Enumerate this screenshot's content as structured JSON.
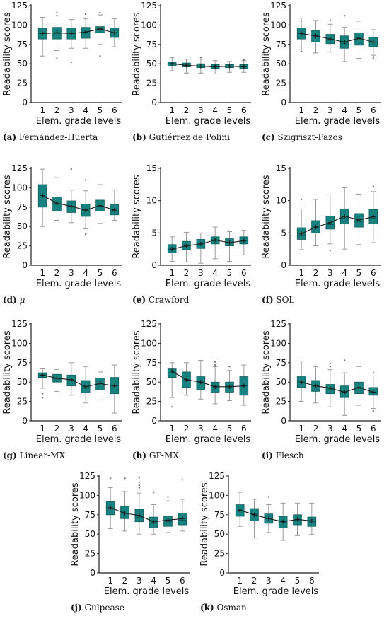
{
  "colors": {
    "box_fill": "#17827f",
    "box_edge": "#0e5e5b",
    "whisker": "#9a9a9a",
    "mean_line": "#1a1a1a",
    "outlier": "#777777"
  },
  "chart_data": [
    {
      "type": "box",
      "panel_letter": "(a)",
      "caption": "Fernández-Huerta",
      "xlabel": "Elem. grade levels",
      "ylabel": "Readability scores",
      "ylim": [
        0,
        125
      ],
      "yticks": [
        0,
        25,
        50,
        75,
        100,
        125
      ],
      "categories": [
        "1",
        "2",
        "3",
        "4",
        "5",
        "6"
      ],
      "q1": [
        82,
        82,
        82,
        83,
        90,
        84
      ],
      "median": [
        89,
        89,
        89,
        90,
        94,
        90
      ],
      "q3": [
        96,
        97,
        96,
        97,
        98,
        96
      ],
      "whisker_low": [
        60,
        67,
        70,
        70,
        75,
        72
      ],
      "whisker_high": [
        110,
        109,
        107,
        108,
        113,
        108
      ],
      "mean": [
        89,
        90,
        89,
        91,
        95,
        90
      ],
      "outliers": [
        [],
        [
          57,
          116,
          112
        ],
        [
          52
        ],
        [
          114
        ],
        [
          60,
          116
        ],
        []
      ]
    },
    {
      "type": "box",
      "panel_letter": "(b)",
      "caption": "Gutiérrez de Polini",
      "xlabel": "Elem. grade levels",
      "ylabel": "Readability scores",
      "ylim": [
        0,
        125
      ],
      "yticks": [
        0,
        25,
        50,
        75,
        100,
        125
      ],
      "categories": [
        "1",
        "2",
        "3",
        "4",
        "5",
        "6"
      ],
      "q1": [
        47,
        46,
        45,
        44,
        45,
        44
      ],
      "median": [
        50,
        48,
        47,
        46,
        47,
        46
      ],
      "q3": [
        52,
        51,
        50,
        49,
        49,
        49
      ],
      "whisker_low": [
        41,
        38,
        38,
        37,
        39,
        39
      ],
      "whisker_high": [
        58,
        56,
        56,
        54,
        53,
        54
      ],
      "mean": [
        50,
        48,
        47,
        46,
        47,
        46
      ],
      "outliers": [
        [],
        [],
        [
          58
        ],
        [],
        [],
        [
          55
        ]
      ]
    },
    {
      "type": "box",
      "panel_letter": "(c)",
      "caption": "Szigriszt-Pazos",
      "xlabel": "Elem. grade levels",
      "ylabel": "Readability scores",
      "ylim": [
        0,
        125
      ],
      "yticks": [
        0,
        25,
        50,
        75,
        100,
        125
      ],
      "categories": [
        "1",
        "2",
        "3",
        "4",
        "5",
        "6"
      ],
      "q1": [
        82,
        78,
        76,
        70,
        74,
        72
      ],
      "median": [
        89,
        86,
        82,
        76,
        82,
        78
      ],
      "q3": [
        96,
        93,
        88,
        86,
        90,
        84
      ],
      "whisker_low": [
        68,
        64,
        65,
        53,
        57,
        61
      ],
      "whisker_high": [
        109,
        106,
        101,
        97,
        105,
        94
      ],
      "mean": [
        89,
        86,
        82,
        78,
        83,
        78
      ],
      "outliers": [
        [
          66
        ],
        [],
        [
          106
        ],
        [
          112
        ],
        [],
        [
          57,
          59
        ]
      ]
    },
    {
      "type": "box",
      "panel_letter": "(d)",
      "caption": "μ",
      "xlabel": "Elem. grade levels",
      "ylabel": "Readability scores",
      "ylim": [
        0,
        125
      ],
      "yticks": [
        0,
        25,
        50,
        75,
        100,
        125
      ],
      "categories": [
        "1",
        "2",
        "3",
        "4",
        "5",
        "6"
      ],
      "q1": [
        75,
        70,
        68,
        63,
        70,
        65
      ],
      "median": [
        88,
        79,
        76,
        70,
        76,
        70
      ],
      "q3": [
        104,
        88,
        83,
        79,
        84,
        78
      ],
      "whisker_low": [
        50,
        58,
        55,
        47,
        54,
        58
      ],
      "whisker_high": [
        124,
        113,
        97,
        96,
        104,
        97
      ],
      "mean": [
        90,
        80,
        76,
        71,
        77,
        71
      ],
      "outliers": [
        [],
        [],
        [
          124
        ],
        [
          40,
          110
        ],
        [],
        []
      ]
    },
    {
      "type": "box",
      "panel_letter": "(e)",
      "caption": "Crawford",
      "xlabel": "Elem. grade levels",
      "ylabel": "Readability scores",
      "ylim": [
        0,
        15
      ],
      "yticks": [
        0,
        5,
        10,
        15
      ],
      "categories": [
        "1",
        "2",
        "3",
        "4",
        "5",
        "6"
      ],
      "q1": [
        1.9,
        2.4,
        2.6,
        3.3,
        3.0,
        3.3
      ],
      "median": [
        2.5,
        3.0,
        3.3,
        3.9,
        3.5,
        3.8
      ],
      "q3": [
        3.2,
        3.7,
        4.0,
        4.4,
        4.1,
        4.4
      ],
      "whisker_low": [
        0.6,
        0.5,
        0.3,
        1.0,
        0.6,
        1.6
      ],
      "whisker_high": [
        4.4,
        5.1,
        5.0,
        5.9,
        5.2,
        5.4
      ],
      "mean": [
        2.5,
        3.0,
        3.3,
        3.9,
        3.5,
        3.8
      ],
      "outliers": [
        [],
        [],
        [],
        [],
        [],
        []
      ]
    },
    {
      "type": "box",
      "panel_letter": "(f)",
      "caption": "SOL",
      "xlabel": "Elem. grade levels",
      "ylabel": "Readability scores",
      "ylim": [
        0,
        15
      ],
      "yticks": [
        0,
        5,
        10,
        15
      ],
      "categories": [
        "1",
        "2",
        "3",
        "4",
        "5",
        "6"
      ],
      "q1": [
        4.0,
        5.0,
        5.6,
        6.4,
        5.9,
        6.4
      ],
      "median": [
        4.7,
        5.8,
        6.3,
        7.3,
        6.7,
        7.3
      ],
      "q3": [
        5.8,
        6.9,
        7.6,
        8.7,
        8.0,
        8.6
      ],
      "whisker_low": [
        2.4,
        3.0,
        3.3,
        2.5,
        3.2,
        3.5
      ],
      "whisker_high": [
        8.7,
        10.2,
        10.9,
        12.0,
        11.0,
        11.4
      ],
      "mean": [
        4.9,
        5.9,
        6.6,
        7.6,
        7.0,
        7.5
      ],
      "outliers": [
        [
          10.2
        ],
        [],
        [
          2.3
        ],
        [],
        [],
        [
          12.2
        ]
      ]
    },
    {
      "type": "box",
      "panel_letter": "(g)",
      "caption": "Linear-MX",
      "xlabel": "Elem. grade levels",
      "ylabel": "Readability scores",
      "ylim": [
        0,
        125
      ],
      "yticks": [
        0,
        25,
        50,
        75,
        100,
        125
      ],
      "categories": [
        "1",
        "2",
        "3",
        "4",
        "5",
        "6"
      ],
      "q1": [
        56,
        50,
        45,
        36,
        40,
        35
      ],
      "median": [
        59,
        54,
        53,
        42,
        48,
        45
      ],
      "q3": [
        62,
        60,
        59,
        52,
        55,
        56
      ],
      "whisker_low": [
        42,
        38,
        33,
        23,
        27,
        10
      ],
      "whisker_high": [
        67,
        66,
        75,
        70,
        63,
        72
      ],
      "mean": [
        59,
        55,
        53,
        44,
        48,
        45
      ],
      "outliers": [
        [
          30,
          35
        ],
        [],
        [],
        [],
        [],
        []
      ]
    },
    {
      "type": "box",
      "panel_letter": "(h)",
      "caption": "GP-MX",
      "xlabel": "Elem. grade levels",
      "ylabel": "Readability scores",
      "ylim": [
        0,
        125
      ],
      "yticks": [
        0,
        25,
        50,
        75,
        100,
        125
      ],
      "categories": [
        "1",
        "2",
        "3",
        "4",
        "5",
        "6"
      ],
      "q1": [
        56,
        43,
        40,
        37,
        37,
        33
      ],
      "median": [
        62,
        52,
        50,
        45,
        45,
        45
      ],
      "q3": [
        67,
        63,
        57,
        50,
        50,
        57
      ],
      "whisker_low": [
        30,
        33,
        28,
        22,
        26,
        20
      ],
      "whisker_high": [
        75,
        75,
        78,
        70,
        65,
        72
      ],
      "mean": [
        64,
        53,
        50,
        44,
        44,
        45
      ],
      "outliers": [
        [
          18
        ],
        [],
        [],
        [
          72,
          76
        ],
        [
          70
        ],
        []
      ]
    },
    {
      "type": "box",
      "panel_letter": "(i)",
      "caption": "Flesch",
      "xlabel": "Elem. grade levels",
      "ylabel": "Readability scores",
      "ylim": [
        0,
        125
      ],
      "yticks": [
        0,
        25,
        50,
        75,
        100,
        125
      ],
      "categories": [
        "1",
        "2",
        "3",
        "4",
        "5",
        "6"
      ],
      "q1": [
        43,
        38,
        35,
        30,
        35,
        33
      ],
      "median": [
        50,
        45,
        40,
        36,
        42,
        37
      ],
      "q3": [
        57,
        52,
        47,
        45,
        50,
        43
      ],
      "whisker_low": [
        25,
        23,
        18,
        7,
        20,
        16
      ],
      "whisker_high": [
        77,
        70,
        66,
        62,
        70,
        58
      ],
      "mean": [
        50,
        45,
        42,
        37,
        43,
        37
      ],
      "outliers": [
        [],
        [],
        [
          70,
          74
        ],
        [
          78
        ],
        [],
        [
          13,
          62
        ]
      ]
    },
    {
      "type": "box",
      "panel_letter": "(j)",
      "caption": "Gulpease",
      "xlabel": "Elem. grade levels",
      "ylabel": "Readability scores",
      "ylim": [
        0,
        125
      ],
      "yticks": [
        0,
        25,
        50,
        75,
        100,
        125
      ],
      "categories": [
        "1",
        "2",
        "3",
        "4",
        "5",
        "6"
      ],
      "q1": [
        75,
        70,
        66,
        58,
        60,
        62
      ],
      "median": [
        84,
        77,
        72,
        64,
        66,
        68
      ],
      "q3": [
        92,
        86,
        82,
        72,
        73,
        77
      ],
      "whisker_low": [
        57,
        54,
        50,
        50,
        52,
        54
      ],
      "whisker_high": [
        110,
        105,
        103,
        88,
        93,
        95
      ],
      "mean": [
        84,
        77,
        74,
        66,
        68,
        70
      ],
      "outliers": [
        [
          122
        ],
        [
          122
        ],
        [
          113,
          117,
          123,
          110
        ],
        [
          104
        ],
        [
          98
        ],
        [
          120
        ]
      ]
    },
    {
      "type": "box",
      "panel_letter": "(k)",
      "caption": "Osman",
      "xlabel": "Elem. grade levels",
      "ylabel": "Readability scores",
      "ylim": [
        0,
        125
      ],
      "yticks": [
        0,
        25,
        50,
        75,
        100,
        125
      ],
      "categories": [
        "1",
        "2",
        "3",
        "4",
        "5",
        "6"
      ],
      "q1": [
        73,
        67,
        64,
        58,
        62,
        60
      ],
      "median": [
        80,
        76,
        70,
        65,
        68,
        66
      ],
      "q3": [
        88,
        83,
        76,
        73,
        75,
        72
      ],
      "whisker_low": [
        60,
        45,
        52,
        42,
        48,
        50
      ],
      "whisker_high": [
        104,
        95,
        88,
        90,
        90,
        90
      ],
      "mean": [
        81,
        75,
        70,
        66,
        69,
        67
      ],
      "outliers": [
        [],
        [],
        [
          98
        ],
        [],
        [],
        []
      ]
    }
  ]
}
